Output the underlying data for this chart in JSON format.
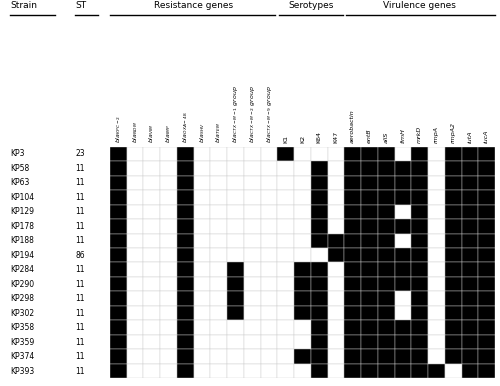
{
  "strains": [
    "KP3",
    "KP58",
    "KP63",
    "KP104",
    "KP129",
    "KP178",
    "KP188",
    "KP194",
    "KP284",
    "KP290",
    "KP298",
    "KP302",
    "KP358",
    "KP359",
    "KP374",
    "KP393"
  ],
  "st": [
    "23",
    "11",
    "11",
    "11",
    "11",
    "11",
    "11",
    "86",
    "11",
    "11",
    "11",
    "11",
    "11",
    "11",
    "11",
    "11"
  ],
  "col_groups": [
    {
      "name": "Resistance genes",
      "cols": [
        "bla$_{KPC-2}$",
        "bla$_{NDM}$",
        "bla$_{VIM}$",
        "bla$_{IMP}$",
        "bla$_{OXA-48}$",
        "bla$_{SHV}$",
        "bla$_{TEM}$",
        "bla$_{CTX-M-1}$ group",
        "bla$_{CTX-M-2}$ group",
        "bla$_{CTX-M-9}$ group"
      ]
    },
    {
      "name": "Serotypes",
      "cols": [
        "K1",
        "K2",
        "K64",
        "K47"
      ]
    },
    {
      "name": "Virulence genes",
      "cols": [
        "aerobactin",
        "entB",
        "allS",
        "fimH",
        "mrkD",
        "rmpA",
        "rmpA2",
        "iutA",
        "iucA"
      ]
    }
  ],
  "col_labels_resistance": [
    "bla_KPC-2",
    "bla_NDM",
    "bla_VIM",
    "bla_IMP",
    "bla_OXA-48",
    "bla_SHV",
    "bla_TEM",
    "bla_CTX-M-1 group",
    "bla_CTX-M-2 group",
    "bla_CTX-M-9 group"
  ],
  "col_labels_serotypes": [
    "K1",
    "K2",
    "K64",
    "K47"
  ],
  "col_labels_virulence": [
    "aerobactin",
    "entB",
    "allS",
    "fimH",
    "mrkD",
    "rmpA",
    "rmpA2",
    "iutA",
    "iucA"
  ],
  "matrix": [
    [
      1,
      0,
      0,
      0,
      1,
      0,
      0,
      0,
      0,
      0,
      1,
      0,
      0,
      0,
      1,
      1,
      1,
      0,
      1,
      0,
      1,
      1,
      1
    ],
    [
      1,
      0,
      0,
      0,
      1,
      0,
      0,
      0,
      0,
      0,
      0,
      0,
      1,
      0,
      1,
      1,
      1,
      1,
      1,
      0,
      1,
      1,
      1
    ],
    [
      1,
      0,
      0,
      0,
      1,
      0,
      0,
      0,
      0,
      0,
      0,
      0,
      1,
      0,
      1,
      1,
      1,
      1,
      1,
      0,
      1,
      1,
      1
    ],
    [
      1,
      0,
      0,
      0,
      1,
      0,
      0,
      0,
      0,
      0,
      0,
      0,
      1,
      0,
      1,
      1,
      1,
      1,
      1,
      0,
      1,
      1,
      1
    ],
    [
      1,
      0,
      0,
      0,
      1,
      0,
      0,
      0,
      0,
      0,
      0,
      0,
      1,
      0,
      1,
      1,
      1,
      0,
      1,
      0,
      1,
      1,
      1
    ],
    [
      1,
      0,
      0,
      0,
      1,
      0,
      0,
      0,
      0,
      0,
      0,
      0,
      1,
      0,
      1,
      1,
      1,
      1,
      1,
      0,
      1,
      1,
      1
    ],
    [
      1,
      0,
      0,
      0,
      1,
      0,
      0,
      0,
      0,
      0,
      0,
      0,
      1,
      1,
      1,
      1,
      1,
      0,
      1,
      0,
      1,
      1,
      1
    ],
    [
      1,
      0,
      0,
      0,
      1,
      0,
      0,
      0,
      0,
      0,
      0,
      0,
      0,
      1,
      1,
      1,
      1,
      1,
      1,
      0,
      1,
      1,
      1
    ],
    [
      1,
      0,
      0,
      0,
      1,
      0,
      0,
      1,
      0,
      0,
      0,
      1,
      1,
      0,
      1,
      1,
      1,
      1,
      1,
      0,
      1,
      1,
      1
    ],
    [
      1,
      0,
      0,
      0,
      1,
      0,
      0,
      1,
      0,
      0,
      0,
      1,
      1,
      0,
      1,
      1,
      1,
      1,
      1,
      0,
      1,
      1,
      1
    ],
    [
      1,
      0,
      0,
      0,
      1,
      0,
      0,
      1,
      0,
      0,
      0,
      1,
      1,
      0,
      1,
      1,
      1,
      0,
      1,
      0,
      1,
      1,
      1
    ],
    [
      1,
      0,
      0,
      0,
      1,
      0,
      0,
      1,
      0,
      0,
      0,
      1,
      1,
      0,
      1,
      1,
      1,
      0,
      1,
      0,
      1,
      1,
      1
    ],
    [
      1,
      0,
      0,
      0,
      1,
      0,
      0,
      0,
      0,
      0,
      0,
      0,
      1,
      0,
      1,
      1,
      1,
      1,
      1,
      0,
      1,
      1,
      1
    ],
    [
      1,
      0,
      0,
      0,
      1,
      0,
      0,
      0,
      0,
      0,
      0,
      0,
      1,
      0,
      1,
      1,
      1,
      1,
      1,
      0,
      1,
      1,
      1
    ],
    [
      1,
      0,
      0,
      0,
      1,
      0,
      0,
      0,
      0,
      0,
      0,
      1,
      1,
      0,
      1,
      1,
      1,
      1,
      1,
      0,
      1,
      1,
      1
    ],
    [
      1,
      0,
      0,
      0,
      1,
      0,
      0,
      0,
      0,
      0,
      0,
      0,
      1,
      0,
      1,
      1,
      1,
      1,
      1,
      1,
      0,
      1,
      1
    ]
  ],
  "background": "#ffffff",
  "cell_color_on": "#000000",
  "cell_color_off": "#ffffff"
}
